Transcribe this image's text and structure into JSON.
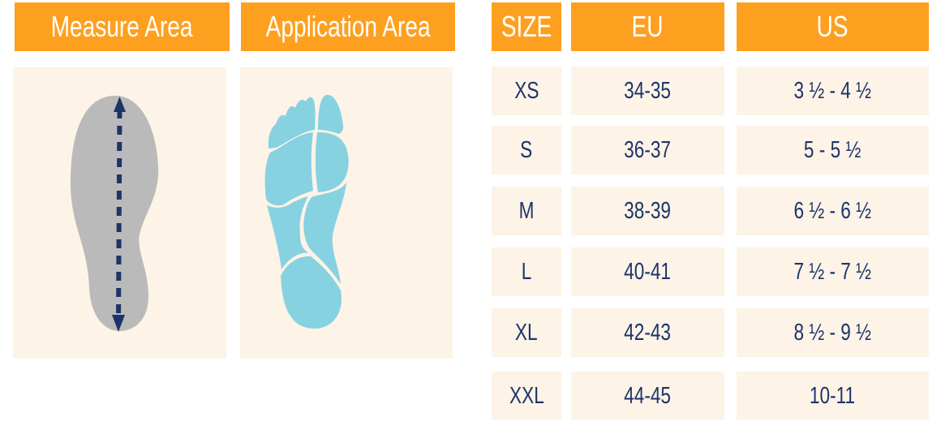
{
  "headers": {
    "measure_area": "Measure Area",
    "application_area": "Application Area",
    "size": "SIZE",
    "eu": "EU",
    "us": "US"
  },
  "rows": [
    {
      "size": "XS",
      "eu": "34-35",
      "us": "3 ½ - 4  ½"
    },
    {
      "size": "S",
      "eu": "36-37",
      "us": "5  - 5 ½"
    },
    {
      "size": "M",
      "eu": "38-39",
      "us": "6 ½ - 6 ½"
    },
    {
      "size": "L",
      "eu": "40-41",
      "us": "7 ½ - 7 ½"
    },
    {
      "size": "XL",
      "eu": "42-43",
      "us": "8 ½ - 9 ½"
    },
    {
      "size": "XXL",
      "eu": "44-45",
      "us": "10-11"
    }
  ],
  "colors": {
    "header": "#fea01f",
    "cell": "#fdf3e7",
    "text": "#1d3468",
    "sole": "#bababa",
    "foot": "#86d2e1"
  },
  "icons": {
    "measure": "shoe-sole-length-arrow",
    "application": "foot-sole-zones"
  }
}
